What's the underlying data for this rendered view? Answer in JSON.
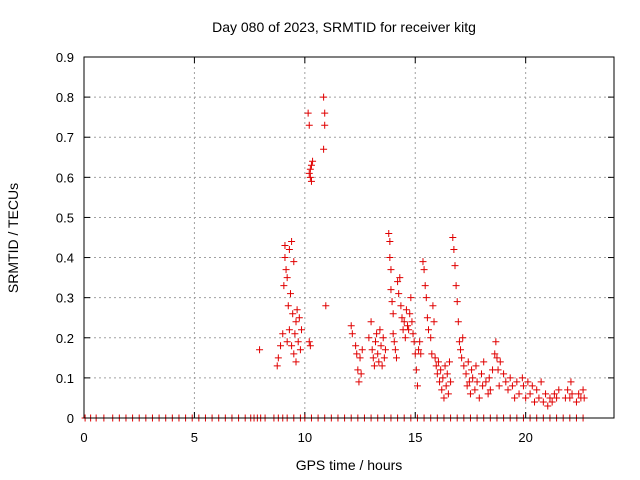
{
  "chart_data": {
    "type": "scatter",
    "title": "Day 080 of 2023, SRMTID for receiver kitg",
    "xlabel": "GPS time / hours",
    "ylabel": "SRMTID / TECUs",
    "xlim": [
      0,
      24
    ],
    "ylim": [
      0,
      0.9
    ],
    "xticks": [
      0,
      5,
      10,
      15,
      20
    ],
    "xtick_labels": [
      "0",
      "5",
      "10",
      "15",
      "20"
    ],
    "yticks": [
      0,
      0.1,
      0.2,
      0.3,
      0.4,
      0.5,
      0.6,
      0.7,
      0.8,
      0.9
    ],
    "ytick_labels": [
      "0",
      "0.1",
      "0.2",
      "0.3",
      "0.4",
      "0.5",
      "0.6",
      "0.7",
      "0.8",
      "0.9"
    ],
    "grid": true,
    "marker": "plus",
    "series": [
      {
        "name": "SRMTID",
        "color": "#e00000",
        "points": [
          [
            0.05,
            0
          ],
          [
            0.3,
            0
          ],
          [
            0.55,
            0
          ],
          [
            0.9,
            0
          ],
          [
            1.3,
            0
          ],
          [
            1.6,
            0
          ],
          [
            1.9,
            0
          ],
          [
            2.2,
            0
          ],
          [
            2.5,
            0
          ],
          [
            2.8,
            0
          ],
          [
            3.1,
            0
          ],
          [
            3.4,
            0
          ],
          [
            3.7,
            0
          ],
          [
            4.0,
            0
          ],
          [
            4.3,
            0
          ],
          [
            4.6,
            0
          ],
          [
            4.9,
            0
          ],
          [
            5.2,
            0
          ],
          [
            5.5,
            0
          ],
          [
            5.8,
            0
          ],
          [
            6.1,
            0
          ],
          [
            6.4,
            0
          ],
          [
            6.7,
            0
          ],
          [
            7.0,
            0
          ],
          [
            7.3,
            0
          ],
          [
            7.55,
            0
          ],
          [
            7.7,
            0
          ],
          [
            7.85,
            0
          ],
          [
            8.0,
            0
          ],
          [
            8.2,
            0
          ],
          [
            8.6,
            0
          ],
          [
            8.8,
            0
          ],
          [
            9.0,
            0
          ],
          [
            9.2,
            0
          ],
          [
            9.5,
            0
          ],
          [
            9.8,
            0
          ],
          [
            10.0,
            0
          ],
          [
            10.3,
            0
          ],
          [
            10.6,
            0
          ],
          [
            10.9,
            0
          ],
          [
            11.2,
            0
          ],
          [
            11.5,
            0
          ],
          [
            11.8,
            0
          ],
          [
            12.1,
            0
          ],
          [
            12.4,
            0
          ],
          [
            12.7,
            0
          ],
          [
            13.0,
            0
          ],
          [
            13.3,
            0
          ],
          [
            13.6,
            0
          ],
          [
            13.9,
            0
          ],
          [
            14.2,
            0
          ],
          [
            14.5,
            0
          ],
          [
            14.8,
            0
          ],
          [
            15.1,
            0
          ],
          [
            15.4,
            0
          ],
          [
            15.7,
            0
          ],
          [
            16.0,
            0
          ],
          [
            16.3,
            0
          ],
          [
            16.6,
            0
          ],
          [
            16.9,
            0
          ],
          [
            17.2,
            0
          ],
          [
            17.5,
            0
          ],
          [
            17.8,
            0
          ],
          [
            18.1,
            0
          ],
          [
            18.4,
            0
          ],
          [
            18.7,
            0
          ],
          [
            19.0,
            0
          ],
          [
            19.3,
            0
          ],
          [
            19.6,
            0
          ],
          [
            19.9,
            0
          ],
          [
            20.2,
            0
          ],
          [
            20.5,
            0
          ],
          [
            20.8,
            0
          ],
          [
            21.1,
            0
          ],
          [
            21.4,
            0
          ],
          [
            21.7,
            0
          ],
          [
            22.0,
            0
          ],
          [
            22.3,
            0
          ],
          [
            22.6,
            0
          ],
          [
            7.95,
            0.17
          ],
          [
            8.75,
            0.13
          ],
          [
            8.8,
            0.15
          ],
          [
            8.9,
            0.18
          ],
          [
            9.0,
            0.21
          ],
          [
            9.05,
            0.33
          ],
          [
            9.1,
            0.43
          ],
          [
            9.1,
            0.4
          ],
          [
            9.15,
            0.37
          ],
          [
            9.2,
            0.35
          ],
          [
            9.2,
            0.19
          ],
          [
            9.25,
            0.28
          ],
          [
            9.3,
            0.42
          ],
          [
            9.3,
            0.22
          ],
          [
            9.35,
            0.31
          ],
          [
            9.4,
            0.44
          ],
          [
            9.4,
            0.18
          ],
          [
            9.45,
            0.26
          ],
          [
            9.5,
            0.39
          ],
          [
            9.5,
            0.16
          ],
          [
            9.55,
            0.21
          ],
          [
            9.6,
            0.24
          ],
          [
            9.6,
            0.14
          ],
          [
            9.65,
            0.27
          ],
          [
            9.7,
            0.19
          ],
          [
            9.75,
            0.25
          ],
          [
            9.8,
            0.17
          ],
          [
            9.85,
            0.22
          ],
          [
            10.15,
            0.76
          ],
          [
            10.2,
            0.73
          ],
          [
            10.2,
            0.61
          ],
          [
            10.25,
            0.62
          ],
          [
            10.25,
            0.6
          ],
          [
            10.3,
            0.63
          ],
          [
            10.3,
            0.59
          ],
          [
            10.35,
            0.64
          ],
          [
            10.2,
            0.19
          ],
          [
            10.25,
            0.18
          ],
          [
            10.85,
            0.8
          ],
          [
            10.9,
            0.76
          ],
          [
            10.9,
            0.73
          ],
          [
            10.95,
            0.28
          ],
          [
            10.85,
            0.67
          ],
          [
            12.1,
            0.23
          ],
          [
            12.15,
            0.21
          ],
          [
            12.3,
            0.18
          ],
          [
            12.35,
            0.16
          ],
          [
            12.4,
            0.12
          ],
          [
            12.45,
            0.09
          ],
          [
            12.5,
            0.15
          ],
          [
            12.55,
            0.11
          ],
          [
            12.6,
            0.17
          ],
          [
            12.9,
            0.2
          ],
          [
            13.0,
            0.24
          ],
          [
            13.05,
            0.17
          ],
          [
            13.1,
            0.15
          ],
          [
            13.15,
            0.13
          ],
          [
            13.2,
            0.19
          ],
          [
            13.25,
            0.21
          ],
          [
            13.3,
            0.16
          ],
          [
            13.35,
            0.14
          ],
          [
            13.4,
            0.22
          ],
          [
            13.45,
            0.18
          ],
          [
            13.5,
            0.13
          ],
          [
            13.55,
            0.2
          ],
          [
            13.6,
            0.15
          ],
          [
            13.65,
            0.17
          ],
          [
            13.8,
            0.46
          ],
          [
            13.85,
            0.44
          ],
          [
            13.85,
            0.4
          ],
          [
            13.9,
            0.37
          ],
          [
            13.9,
            0.32
          ],
          [
            13.95,
            0.29
          ],
          [
            14.0,
            0.26
          ],
          [
            14.0,
            0.21
          ],
          [
            14.05,
            0.19
          ],
          [
            14.1,
            0.17
          ],
          [
            14.15,
            0.15
          ],
          [
            14.2,
            0.34
          ],
          [
            14.25,
            0.31
          ],
          [
            14.3,
            0.35
          ],
          [
            14.35,
            0.28
          ],
          [
            14.4,
            0.25
          ],
          [
            14.45,
            0.22
          ],
          [
            14.5,
            0.24
          ],
          [
            14.55,
            0.2
          ],
          [
            14.6,
            0.27
          ],
          [
            14.65,
            0.23
          ],
          [
            14.7,
            0.22
          ],
          [
            14.75,
            0.26
          ],
          [
            14.8,
            0.3
          ],
          [
            14.85,
            0.24
          ],
          [
            14.9,
            0.21
          ],
          [
            14.95,
            0.19
          ],
          [
            15.0,
            0.16
          ],
          [
            15.05,
            0.12
          ],
          [
            15.1,
            0.08
          ],
          [
            15.15,
            0.17
          ],
          [
            15.2,
            0.19
          ],
          [
            15.25,
            0.16
          ],
          [
            15.35,
            0.39
          ],
          [
            15.4,
            0.37
          ],
          [
            15.45,
            0.33
          ],
          [
            15.5,
            0.3
          ],
          [
            15.55,
            0.25
          ],
          [
            15.6,
            0.22
          ],
          [
            15.7,
            0.2
          ],
          [
            15.75,
            0.16
          ],
          [
            15.8,
            0.28
          ],
          [
            15.85,
            0.24
          ],
          [
            15.9,
            0.15
          ],
          [
            15.95,
            0.13
          ],
          [
            16.0,
            0.11
          ],
          [
            16.05,
            0.14
          ],
          [
            16.1,
            0.09
          ],
          [
            16.15,
            0.12
          ],
          [
            16.2,
            0.07
          ],
          [
            16.25,
            0.1
          ],
          [
            16.3,
            0.05
          ],
          [
            16.35,
            0.13
          ],
          [
            16.4,
            0.08
          ],
          [
            16.45,
            0.11
          ],
          [
            16.5,
            0.06
          ],
          [
            16.55,
            0.14
          ],
          [
            16.6,
            0.09
          ],
          [
            16.7,
            0.45
          ],
          [
            16.75,
            0.42
          ],
          [
            16.8,
            0.38
          ],
          [
            16.85,
            0.33
          ],
          [
            16.9,
            0.29
          ],
          [
            16.95,
            0.24
          ],
          [
            17.0,
            0.19
          ],
          [
            17.05,
            0.17
          ],
          [
            17.1,
            0.15
          ],
          [
            17.15,
            0.2
          ],
          [
            17.2,
            0.13
          ],
          [
            17.3,
            0.11
          ],
          [
            17.35,
            0.08
          ],
          [
            17.4,
            0.14
          ],
          [
            17.45,
            0.09
          ],
          [
            17.5,
            0.06
          ],
          [
            17.55,
            0.12
          ],
          [
            17.6,
            0.1
          ],
          [
            17.7,
            0.07
          ],
          [
            17.75,
            0.13
          ],
          [
            17.8,
            0.09
          ],
          [
            17.9,
            0.05
          ],
          [
            18.0,
            0.11
          ],
          [
            18.05,
            0.08
          ],
          [
            18.1,
            0.14
          ],
          [
            18.2,
            0.09
          ],
          [
            18.3,
            0.06
          ],
          [
            18.35,
            0.1
          ],
          [
            18.4,
            0.07
          ],
          [
            18.5,
            0.12
          ],
          [
            18.6,
            0.16
          ],
          [
            18.65,
            0.19
          ],
          [
            18.7,
            0.15
          ],
          [
            18.75,
            0.12
          ],
          [
            18.8,
            0.08
          ],
          [
            18.85,
            0.14
          ],
          [
            19.0,
            0.11
          ],
          [
            19.1,
            0.09
          ],
          [
            19.2,
            0.07
          ],
          [
            19.3,
            0.1
          ],
          [
            19.4,
            0.08
          ],
          [
            19.5,
            0.05
          ],
          [
            19.6,
            0.09
          ],
          [
            19.7,
            0.06
          ],
          [
            19.85,
            0.1
          ],
          [
            19.9,
            0.08
          ],
          [
            20.0,
            0.05
          ],
          [
            20.1,
            0.09
          ],
          [
            20.2,
            0.06
          ],
          [
            20.3,
            0.08
          ],
          [
            20.4,
            0.04
          ],
          [
            20.5,
            0.07
          ],
          [
            20.6,
            0.05
          ],
          [
            20.7,
            0.09
          ],
          [
            20.8,
            0.04
          ],
          [
            20.9,
            0.06
          ],
          [
            21.0,
            0.03
          ],
          [
            21.1,
            0.05
          ],
          [
            21.2,
            0.04
          ],
          [
            21.3,
            0.06
          ],
          [
            21.4,
            0.05
          ],
          [
            21.5,
            0.07
          ],
          [
            21.8,
            0.05
          ],
          [
            21.9,
            0.07
          ],
          [
            22.0,
            0.05
          ],
          [
            22.05,
            0.09
          ],
          [
            22.1,
            0.06
          ],
          [
            22.3,
            0.04
          ],
          [
            22.4,
            0.06
          ],
          [
            22.5,
            0.05
          ],
          [
            22.6,
            0.07
          ],
          [
            22.65,
            0.05
          ]
        ]
      }
    ]
  }
}
